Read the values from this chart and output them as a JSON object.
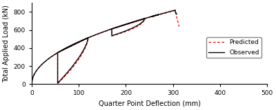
{
  "title": "",
  "xlabel": "Quarter Point Deflection (mm)",
  "ylabel": "Total Applied Load (kN)",
  "xlim": [
    0,
    500
  ],
  "ylim": [
    0,
    900
  ],
  "xticks": [
    0,
    100,
    200,
    300,
    400,
    500
  ],
  "yticks": [
    0,
    200,
    400,
    600,
    800
  ],
  "observed_color": "#000000",
  "predicted_color": "#ff0000",
  "legend_labels": [
    "Observed",
    "Predicted"
  ],
  "background_color": "#ffffff",
  "figsize": [
    4.0,
    1.6
  ],
  "dpi": 100
}
